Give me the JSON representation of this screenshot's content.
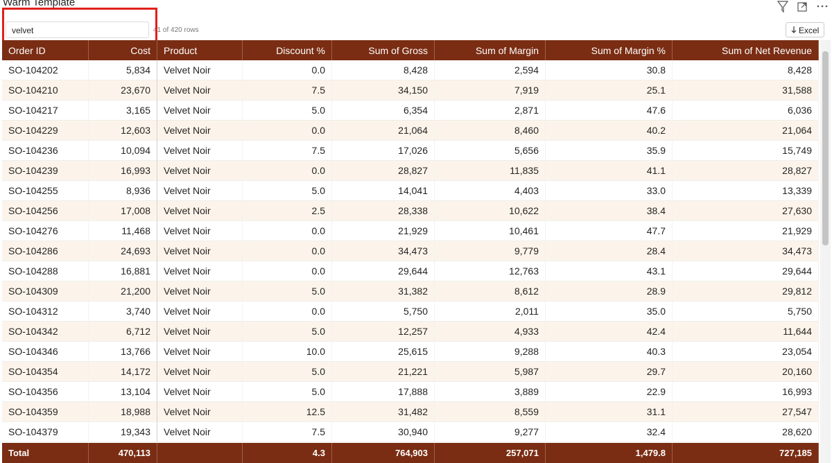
{
  "header": {
    "title": "Warm Template",
    "search": "velvet",
    "row_count": "41 of 420 rows",
    "export": "Excel"
  },
  "table": {
    "columns": [
      "Order ID",
      "Cost",
      "Product",
      "Discount %",
      "Sum of Gross",
      "Sum of Margin",
      "Sum of Margin %",
      "Sum of Net Revenue"
    ],
    "rows": [
      [
        "SO-104202",
        "5,834",
        "Velvet Noir",
        "0.0",
        "8,428",
        "2,594",
        "30.8",
        "8,428"
      ],
      [
        "SO-104210",
        "23,670",
        "Velvet Noir",
        "7.5",
        "34,150",
        "7,919",
        "25.1",
        "31,588"
      ],
      [
        "SO-104217",
        "3,165",
        "Velvet Noir",
        "5.0",
        "6,354",
        "2,871",
        "47.6",
        "6,036"
      ],
      [
        "SO-104229",
        "12,603",
        "Velvet Noir",
        "0.0",
        "21,064",
        "8,460",
        "40.2",
        "21,064"
      ],
      [
        "SO-104236",
        "10,094",
        "Velvet Noir",
        "7.5",
        "17,026",
        "5,656",
        "35.9",
        "15,749"
      ],
      [
        "SO-104239",
        "16,993",
        "Velvet Noir",
        "0.0",
        "28,827",
        "11,835",
        "41.1",
        "28,827"
      ],
      [
        "SO-104255",
        "8,936",
        "Velvet Noir",
        "5.0",
        "14,041",
        "4,403",
        "33.0",
        "13,339"
      ],
      [
        "SO-104256",
        "17,008",
        "Velvet Noir",
        "2.5",
        "28,338",
        "10,622",
        "38.4",
        "27,630"
      ],
      [
        "SO-104276",
        "11,468",
        "Velvet Noir",
        "0.0",
        "21,929",
        "10,461",
        "47.7",
        "21,929"
      ],
      [
        "SO-104286",
        "24,693",
        "Velvet Noir",
        "0.0",
        "34,473",
        "9,779",
        "28.4",
        "34,473"
      ],
      [
        "SO-104288",
        "16,881",
        "Velvet Noir",
        "0.0",
        "29,644",
        "12,763",
        "43.1",
        "29,644"
      ],
      [
        "SO-104309",
        "21,200",
        "Velvet Noir",
        "5.0",
        "31,382",
        "8,612",
        "28.9",
        "29,812"
      ],
      [
        "SO-104312",
        "3,740",
        "Velvet Noir",
        "0.0",
        "5,750",
        "2,011",
        "35.0",
        "5,750"
      ],
      [
        "SO-104342",
        "6,712",
        "Velvet Noir",
        "5.0",
        "12,257",
        "4,933",
        "42.4",
        "11,644"
      ],
      [
        "SO-104346",
        "13,766",
        "Velvet Noir",
        "10.0",
        "25,615",
        "9,288",
        "40.3",
        "23,054"
      ],
      [
        "SO-104354",
        "14,172",
        "Velvet Noir",
        "5.0",
        "21,221",
        "5,987",
        "29.7",
        "20,160"
      ],
      [
        "SO-104356",
        "13,104",
        "Velvet Noir",
        "5.0",
        "17,888",
        "3,889",
        "22.9",
        "16,993"
      ],
      [
        "SO-104359",
        "18,988",
        "Velvet Noir",
        "12.5",
        "31,482",
        "8,559",
        "31.1",
        "27,547"
      ],
      [
        "SO-104379",
        "19,343",
        "Velvet Noir",
        "7.5",
        "30,940",
        "9,277",
        "32.4",
        "28,620"
      ]
    ],
    "total": [
      "Total",
      "470,113",
      null,
      "4.3",
      "764,903",
      "257,071",
      "1,479.8",
      "727,185"
    ]
  }
}
